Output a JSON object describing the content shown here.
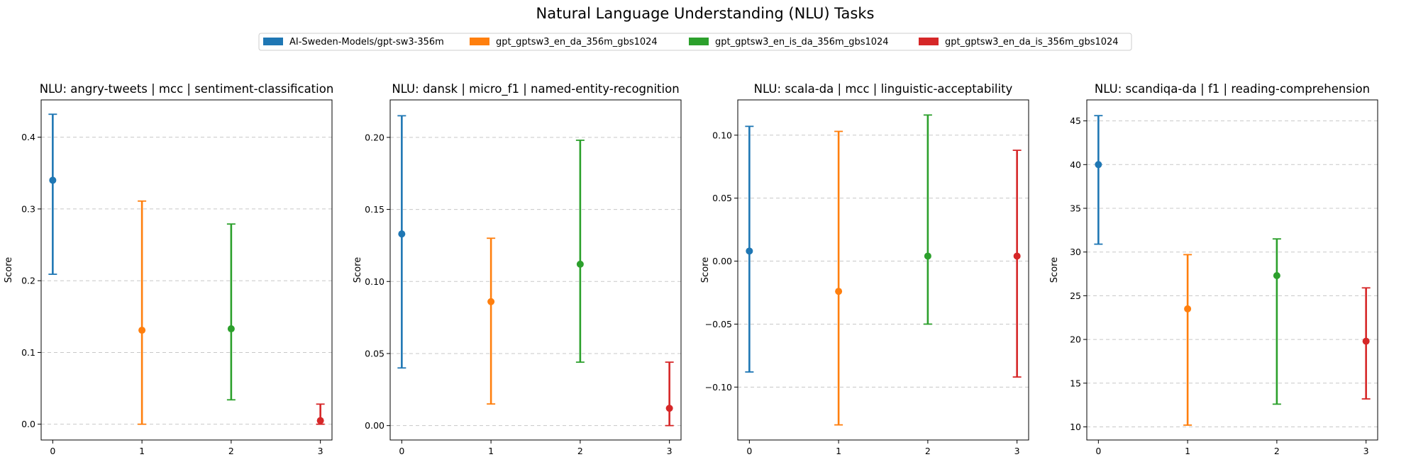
{
  "figure": {
    "title": "Natural Language Understanding (NLU) Tasks",
    "legend_placement": "top-center",
    "series": [
      {
        "name": "AI-Sweden-Models/gpt-sw3-356m",
        "color": "#1f77b4"
      },
      {
        "name": "gpt_gptsw3_en_da_356m_gbs1024",
        "color": "#ff7f0e"
      },
      {
        "name": "gpt_gptsw3_en_is_da_356m_gbs1024",
        "color": "#2ca02c"
      },
      {
        "name": "gpt_gptsw3_en_da_is_356m_gbs1024",
        "color": "#d62728"
      }
    ]
  },
  "chart_data": [
    {
      "type": "scatter",
      "title": "NLU: angry-tweets | mcc | sentiment-classification",
      "xlabel": "",
      "ylabel": "Score",
      "x": [
        0,
        1,
        2,
        3
      ],
      "xticks": [
        "0",
        "1",
        "2",
        "3"
      ],
      "xlim": [
        -0.13,
        3.13
      ],
      "ylim": [
        -0.022,
        0.452
      ],
      "yticks": [
        0.0,
        0.1,
        0.2,
        0.3,
        0.4
      ],
      "ytick_labels": [
        "0.0",
        "0.1",
        "0.2",
        "0.3",
        "0.4"
      ],
      "grid": "y-dashed",
      "values": [
        0.34,
        0.131,
        0.133,
        0.005
      ],
      "error_low": [
        0.209,
        0.0,
        0.034,
        0.0
      ],
      "error_high": [
        0.432,
        0.311,
        0.279,
        0.028
      ]
    },
    {
      "type": "scatter",
      "title": "NLU: dansk | micro_f1 | named-entity-recognition",
      "xlabel": "",
      "ylabel": "Score",
      "x": [
        0,
        1,
        2,
        3
      ],
      "xticks": [
        "0",
        "1",
        "2",
        "3"
      ],
      "xlim": [
        -0.13,
        3.13
      ],
      "ylim": [
        -0.01,
        0.226
      ],
      "yticks": [
        0.0,
        0.05,
        0.1,
        0.15,
        0.2
      ],
      "ytick_labels": [
        "0.00",
        "0.05",
        "0.10",
        "0.15",
        "0.20"
      ],
      "grid": "y-dashed",
      "values": [
        0.133,
        0.086,
        0.112,
        0.012
      ],
      "error_low": [
        0.04,
        0.015,
        0.044,
        0.0
      ],
      "error_high": [
        0.215,
        0.13,
        0.198,
        0.044
      ]
    },
    {
      "type": "scatter",
      "title": "NLU: scala-da | mcc | linguistic-acceptability",
      "xlabel": "",
      "ylabel": "Score",
      "x": [
        0,
        1,
        2,
        3
      ],
      "xticks": [
        "0",
        "1",
        "2",
        "3"
      ],
      "xlim": [
        -0.13,
        3.13
      ],
      "ylim": [
        -0.142,
        0.128
      ],
      "yticks": [
        -0.1,
        -0.05,
        0.0,
        0.05,
        0.1
      ],
      "ytick_labels": [
        "−0.10",
        "−0.05",
        "0.00",
        "0.05",
        "0.10"
      ],
      "grid": "y-dashed",
      "values": [
        0.008,
        -0.024,
        0.004,
        0.004
      ],
      "error_low": [
        -0.088,
        -0.13,
        -0.05,
        -0.092
      ],
      "error_high": [
        0.107,
        0.103,
        0.116,
        0.088
      ]
    },
    {
      "type": "scatter",
      "title": "NLU: scandiqa-da | f1 | reading-comprehension",
      "xlabel": "",
      "ylabel": "Score",
      "x": [
        0,
        1,
        2,
        3
      ],
      "xticks": [
        "0",
        "1",
        "2",
        "3"
      ],
      "xlim": [
        -0.13,
        3.13
      ],
      "ylim": [
        8.5,
        47.4
      ],
      "yticks": [
        10,
        15,
        20,
        25,
        30,
        35,
        40,
        45
      ],
      "ytick_labels": [
        "10",
        "15",
        "20",
        "25",
        "30",
        "35",
        "40",
        "45"
      ],
      "grid": "y-dashed",
      "values": [
        40.0,
        23.5,
        27.3,
        19.8
      ],
      "error_low": [
        30.9,
        10.2,
        12.6,
        13.2
      ],
      "error_high": [
        45.6,
        29.7,
        31.5,
        25.9
      ]
    }
  ]
}
